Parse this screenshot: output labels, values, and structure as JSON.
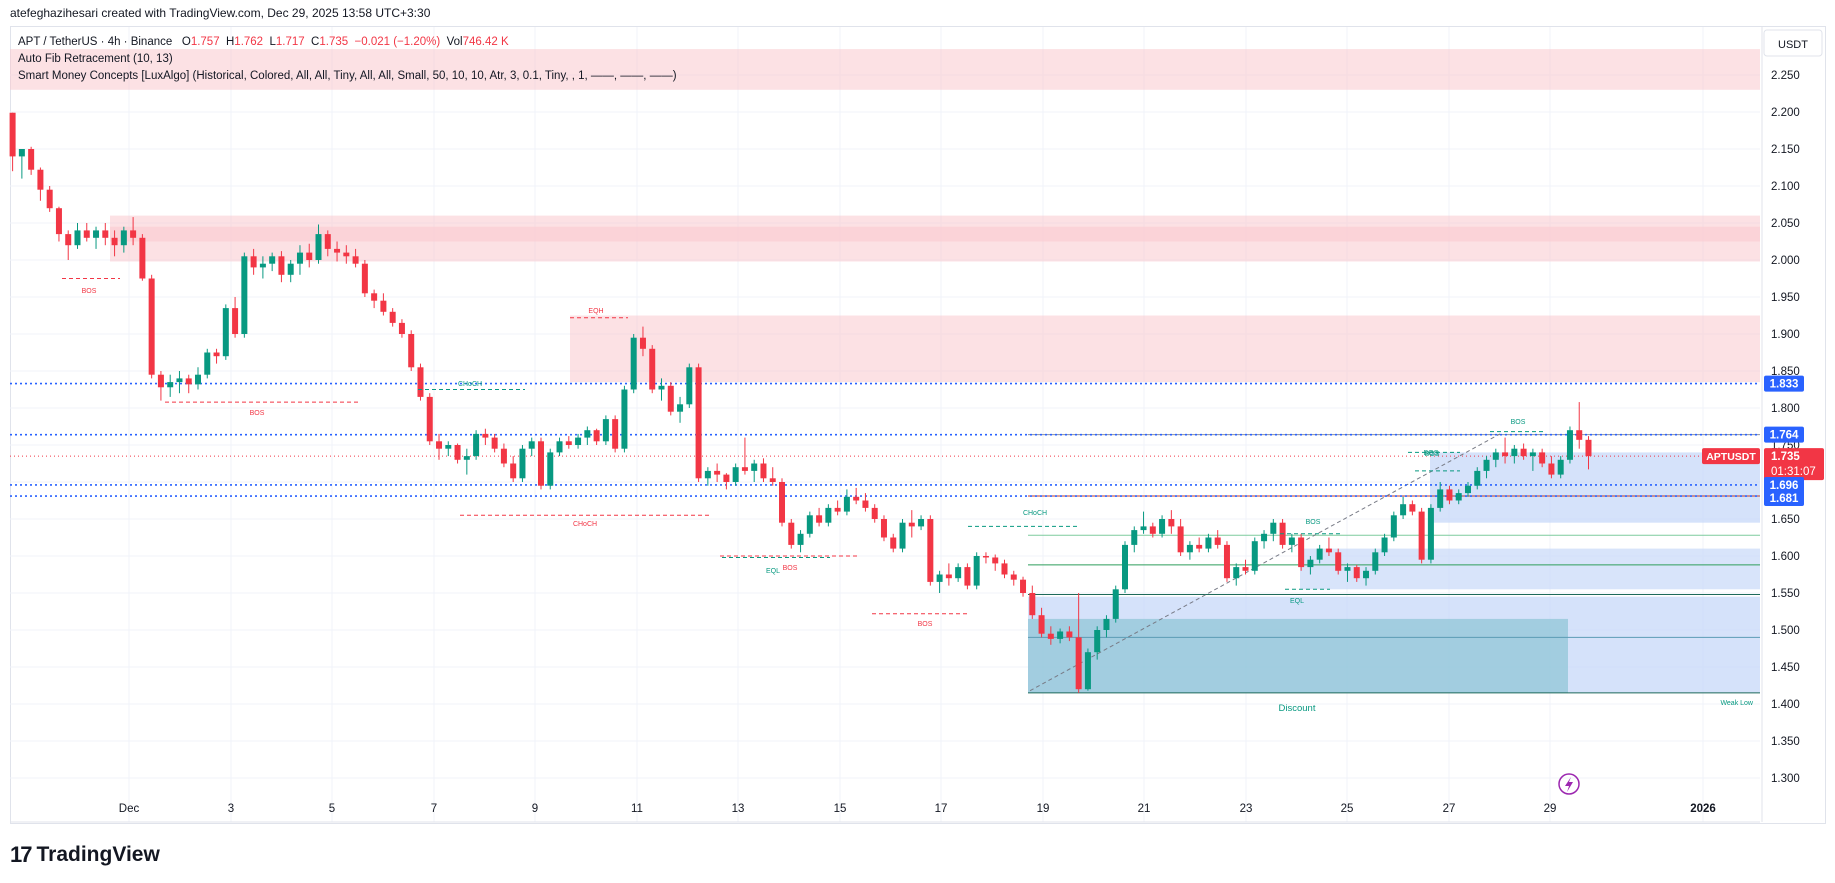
{
  "header": {
    "credit": "atefeghazihesari created with TradingView.com, Dec 29, 2025 13:58 UTC+3:30"
  },
  "legend": {
    "symbol": "APT / TetherUS · 4h · Binance",
    "open_label": "O",
    "open": "1.757",
    "high_label": "H",
    "high": "1.762",
    "low_label": "L",
    "low": "1.717",
    "close_label": "C",
    "close": "1.735",
    "change": "−0.021 (−1.20%)",
    "vol_label": "Vol",
    "vol": "746.42 K",
    "indicator1": "Auto Fib Retracement (10, 13)",
    "indicator2": "Smart Money Concepts [LuxAlgo] (Historical, Colored, All, All, Tiny, All, All, Small, 50, 10, 10, Atr, 3, 0.1, Tiny, , 1, ——, ——, ——)"
  },
  "axis": {
    "currency": "USDT",
    "y_ticks": [
      "2.250",
      "2.200",
      "2.150",
      "2.100",
      "2.050",
      "2.000",
      "1.950",
      "1.900",
      "1.850",
      "1.800",
      "1.750",
      "1.700",
      "1.650",
      "1.600",
      "1.550",
      "1.500",
      "1.450",
      "1.400",
      "1.350",
      "1.300"
    ],
    "x_ticks": [
      "Dec",
      "3",
      "5",
      "7",
      "9",
      "11",
      "13",
      "15",
      "17",
      "19",
      "21",
      "23",
      "25",
      "27",
      "29",
      "2026"
    ]
  },
  "price_tags": {
    "level_1833": "1.833",
    "level_1764": "1.764",
    "symbol_tag": "APTUSDT",
    "last_price": "1.735",
    "countdown": "01:31:07",
    "level_1696": "1.696",
    "level_1681": "1.681"
  },
  "annotations": {
    "bos": "BOS",
    "choch": "CHoCH",
    "eqh": "EQH",
    "eql": "EQL",
    "discount": "Discount",
    "weak_low": "Weak Low"
  },
  "footer": {
    "brand": "TradingView",
    "logo_glyph": "17"
  },
  "colors": {
    "up": "#089981",
    "down": "#f23645",
    "supply_zone": "#f9c9cd",
    "demand_zone": "#c7d8f8",
    "discount_zone": "#8cc4d4",
    "level_line": "#2962ff",
    "bos_text": "#f23645",
    "choch_text": "#089981"
  },
  "chart_data": {
    "type": "candlestick",
    "ylim": [
      1.28,
      2.285
    ],
    "y_label": "USDT",
    "candles_ohlc": [
      [
        2.199,
        2.199,
        2.12,
        2.14
      ],
      [
        2.14,
        2.15,
        2.11,
        2.15
      ],
      [
        2.15,
        2.153,
        2.115,
        2.122
      ],
      [
        2.122,
        2.125,
        2.08,
        2.095
      ],
      [
        2.095,
        2.1,
        2.065,
        2.07
      ],
      [
        2.07,
        2.072,
        2.025,
        2.035
      ],
      [
        2.035,
        2.04,
        2.0,
        2.02
      ],
      [
        2.02,
        2.05,
        2.015,
        2.04
      ],
      [
        2.04,
        2.05,
        2.025,
        2.03
      ],
      [
        2.03,
        2.045,
        2.015,
        2.04
      ],
      [
        2.04,
        2.05,
        2.02,
        2.03
      ],
      [
        2.03,
        2.04,
        2.005,
        2.02
      ],
      [
        2.02,
        2.045,
        2.01,
        2.04
      ],
      [
        2.04,
        2.058,
        2.02,
        2.03
      ],
      [
        2.03,
        2.035,
        1.972,
        1.975
      ],
      [
        1.975,
        1.98,
        1.84,
        1.845
      ],
      [
        1.845,
        1.85,
        1.81,
        1.828
      ],
      [
        1.828,
        1.845,
        1.815,
        1.835
      ],
      [
        1.835,
        1.85,
        1.82,
        1.84
      ],
      [
        1.84,
        1.845,
        1.82,
        1.832
      ],
      [
        1.832,
        1.855,
        1.825,
        1.845
      ],
      [
        1.845,
        1.88,
        1.84,
        1.875
      ],
      [
        1.875,
        1.88,
        1.86,
        1.87
      ],
      [
        1.87,
        1.94,
        1.865,
        1.935
      ],
      [
        1.935,
        1.95,
        1.895,
        1.9
      ],
      [
        1.9,
        2.01,
        1.895,
        2.005
      ],
      [
        2.005,
        2.015,
        1.98,
        1.99
      ],
      [
        1.99,
        2.005,
        1.975,
        1.995
      ],
      [
        1.995,
        2.01,
        1.985,
        2.005
      ],
      [
        2.005,
        2.012,
        1.97,
        1.98
      ],
      [
        1.98,
        2.0,
        1.97,
        1.995
      ],
      [
        1.995,
        2.02,
        1.98,
        2.01
      ],
      [
        2.01,
        2.022,
        1.99,
        2.0
      ],
      [
        2.0,
        2.048,
        1.995,
        2.035
      ],
      [
        2.035,
        2.04,
        2.005,
        2.015
      ],
      [
        2.015,
        2.025,
        1.998,
        2.01
      ],
      [
        2.01,
        2.02,
        1.995,
        2.005
      ],
      [
        2.005,
        2.015,
        1.99,
        1.995
      ],
      [
        1.995,
        2.0,
        1.95,
        1.955
      ],
      [
        1.955,
        1.96,
        1.935,
        1.945
      ],
      [
        1.945,
        1.955,
        1.925,
        1.93
      ],
      [
        1.93,
        1.935,
        1.91,
        1.915
      ],
      [
        1.915,
        1.92,
        1.895,
        1.9
      ],
      [
        1.9,
        1.905,
        1.85,
        1.855
      ],
      [
        1.855,
        1.86,
        1.81,
        1.815
      ],
      [
        1.815,
        1.82,
        1.75,
        1.755
      ],
      [
        1.755,
        1.765,
        1.73,
        1.745
      ],
      [
        1.745,
        1.755,
        1.735,
        1.75
      ],
      [
        1.75,
        1.752,
        1.725,
        1.73
      ],
      [
        1.73,
        1.745,
        1.71,
        1.735
      ],
      [
        1.735,
        1.77,
        1.73,
        1.765
      ],
      [
        1.765,
        1.772,
        1.75,
        1.76
      ],
      [
        1.76,
        1.765,
        1.74,
        1.745
      ],
      [
        1.745,
        1.752,
        1.72,
        1.725
      ],
      [
        1.725,
        1.735,
        1.7,
        1.705
      ],
      [
        1.705,
        1.75,
        1.7,
        1.745
      ],
      [
        1.745,
        1.76,
        1.735,
        1.755
      ],
      [
        1.755,
        1.76,
        1.69,
        1.695
      ],
      [
        1.695,
        1.745,
        1.69,
        1.74
      ],
      [
        1.74,
        1.76,
        1.735,
        1.755
      ],
      [
        1.755,
        1.762,
        1.745,
        1.75
      ],
      [
        1.75,
        1.765,
        1.745,
        1.76
      ],
      [
        1.76,
        1.775,
        1.75,
        1.77
      ],
      [
        1.77,
        1.772,
        1.75,
        1.755
      ],
      [
        1.755,
        1.79,
        1.75,
        1.785
      ],
      [
        1.785,
        1.79,
        1.74,
        1.745
      ],
      [
        1.745,
        1.83,
        1.74,
        1.825
      ],
      [
        1.825,
        1.9,
        1.82,
        1.895
      ],
      [
        1.895,
        1.91,
        1.87,
        1.88
      ],
      [
        1.88,
        1.885,
        1.82,
        1.825
      ],
      [
        1.825,
        1.84,
        1.81,
        1.83
      ],
      [
        1.83,
        1.835,
        1.79,
        1.795
      ],
      [
        1.795,
        1.815,
        1.78,
        1.805
      ],
      [
        1.805,
        1.86,
        1.8,
        1.855
      ],
      [
        1.855,
        1.86,
        1.7,
        1.705
      ],
      [
        1.705,
        1.72,
        1.695,
        1.715
      ],
      [
        1.715,
        1.725,
        1.7,
        1.71
      ],
      [
        1.71,
        1.712,
        1.69,
        1.7
      ],
      [
        1.7,
        1.725,
        1.695,
        1.72
      ],
      [
        1.72,
        1.76,
        1.71,
        1.715
      ],
      [
        1.715,
        1.73,
        1.7,
        1.725
      ],
      [
        1.725,
        1.732,
        1.7,
        1.705
      ],
      [
        1.705,
        1.72,
        1.695,
        1.7
      ],
      [
        1.7,
        1.705,
        1.64,
        1.645
      ],
      [
        1.645,
        1.65,
        1.61,
        1.615
      ],
      [
        1.615,
        1.635,
        1.605,
        1.63
      ],
      [
        1.63,
        1.66,
        1.625,
        1.655
      ],
      [
        1.655,
        1.665,
        1.64,
        1.645
      ],
      [
        1.645,
        1.67,
        1.64,
        1.665
      ],
      [
        1.665,
        1.675,
        1.655,
        1.66
      ],
      [
        1.66,
        1.69,
        1.655,
        1.68
      ],
      [
        1.68,
        1.692,
        1.67,
        1.675
      ],
      [
        1.675,
        1.685,
        1.66,
        1.665
      ],
      [
        1.665,
        1.67,
        1.645,
        1.65
      ],
      [
        1.65,
        1.655,
        1.62,
        1.625
      ],
      [
        1.625,
        1.63,
        1.605,
        1.61
      ],
      [
        1.61,
        1.65,
        1.605,
        1.645
      ],
      [
        1.645,
        1.662,
        1.625,
        1.64
      ],
      [
        1.64,
        1.655,
        1.635,
        1.65
      ],
      [
        1.65,
        1.655,
        1.56,
        1.565
      ],
      [
        1.565,
        1.58,
        1.55,
        1.575
      ],
      [
        1.575,
        1.59,
        1.56,
        1.57
      ],
      [
        1.57,
        1.59,
        1.565,
        1.585
      ],
      [
        1.585,
        1.59,
        1.555,
        1.56
      ],
      [
        1.56,
        1.605,
        1.555,
        1.6
      ],
      [
        1.6,
        1.605,
        1.59,
        1.598
      ],
      [
        1.598,
        1.602,
        1.58,
        1.59
      ],
      [
        1.59,
        1.595,
        1.57,
        1.575
      ],
      [
        1.575,
        1.58,
        1.56,
        1.568
      ],
      [
        1.568,
        1.572,
        1.545,
        1.55
      ],
      [
        1.55,
        1.56,
        1.515,
        1.52
      ],
      [
        1.52,
        1.53,
        1.49,
        1.495
      ],
      [
        1.495,
        1.505,
        1.48,
        1.488
      ],
      [
        1.488,
        1.502,
        1.482,
        1.498
      ],
      [
        1.498,
        1.505,
        1.485,
        1.49
      ],
      [
        1.49,
        1.55,
        1.415,
        1.42
      ],
      [
        1.42,
        1.475,
        1.418,
        1.47
      ],
      [
        1.47,
        1.505,
        1.46,
        1.5
      ],
      [
        1.5,
        1.52,
        1.49,
        1.515
      ],
      [
        1.515,
        1.56,
        1.51,
        1.555
      ],
      [
        1.555,
        1.62,
        1.55,
        1.615
      ],
      [
        1.615,
        1.64,
        1.605,
        1.635
      ],
      [
        1.635,
        1.66,
        1.63,
        1.64
      ],
      [
        1.64,
        1.645,
        1.625,
        1.63
      ],
      [
        1.63,
        1.655,
        1.625,
        1.65
      ],
      [
        1.65,
        1.662,
        1.63,
        1.64
      ],
      [
        1.64,
        1.65,
        1.6,
        1.605
      ],
      [
        1.605,
        1.62,
        1.595,
        1.615
      ],
      [
        1.615,
        1.625,
        1.605,
        1.61
      ],
      [
        1.61,
        1.63,
        1.605,
        1.625
      ],
      [
        1.625,
        1.635,
        1.61,
        1.615
      ],
      [
        1.615,
        1.62,
        1.565,
        1.57
      ],
      [
        1.57,
        1.59,
        1.56,
        1.585
      ],
      [
        1.585,
        1.595,
        1.575,
        1.58
      ],
      [
        1.58,
        1.625,
        1.575,
        1.62
      ],
      [
        1.62,
        1.635,
        1.61,
        1.63
      ],
      [
        1.63,
        1.65,
        1.62,
        1.645
      ],
      [
        1.645,
        1.65,
        1.61,
        1.615
      ],
      [
        1.615,
        1.63,
        1.605,
        1.625
      ],
      [
        1.625,
        1.63,
        1.58,
        1.585
      ],
      [
        1.585,
        1.6,
        1.575,
        1.595
      ],
      [
        1.595,
        1.615,
        1.59,
        1.61
      ],
      [
        1.61,
        1.625,
        1.6,
        1.605
      ],
      [
        1.605,
        1.61,
        1.575,
        1.58
      ],
      [
        1.58,
        1.59,
        1.565,
        1.585
      ],
      [
        1.585,
        1.588,
        1.565,
        1.57
      ],
      [
        1.57,
        1.585,
        1.56,
        1.58
      ],
      [
        1.58,
        1.61,
        1.575,
        1.605
      ],
      [
        1.605,
        1.63,
        1.6,
        1.625
      ],
      [
        1.625,
        1.66,
        1.62,
        1.655
      ],
      [
        1.655,
        1.68,
        1.65,
        1.67
      ],
      [
        1.67,
        1.675,
        1.655,
        1.66
      ],
      [
        1.66,
        1.665,
        1.59,
        1.595
      ],
      [
        1.595,
        1.67,
        1.59,
        1.665
      ],
      [
        1.665,
        1.7,
        1.66,
        1.69
      ],
      [
        1.69,
        1.695,
        1.67,
        1.675
      ],
      [
        1.675,
        1.69,
        1.67,
        1.685
      ],
      [
        1.685,
        1.7,
        1.68,
        1.695
      ],
      [
        1.695,
        1.72,
        1.69,
        1.715
      ],
      [
        1.715,
        1.735,
        1.705,
        1.73
      ],
      [
        1.73,
        1.745,
        1.72,
        1.74
      ],
      [
        1.74,
        1.76,
        1.725,
        1.735
      ],
      [
        1.735,
        1.75,
        1.725,
        1.745
      ],
      [
        1.745,
        1.752,
        1.73,
        1.735
      ],
      [
        1.735,
        1.745,
        1.715,
        1.74
      ],
      [
        1.74,
        1.745,
        1.72,
        1.725
      ],
      [
        1.725,
        1.735,
        1.705,
        1.71
      ],
      [
        1.71,
        1.735,
        1.705,
        1.73
      ],
      [
        1.73,
        1.775,
        1.725,
        1.77
      ],
      [
        1.77,
        1.808,
        1.745,
        1.757
      ],
      [
        1.757,
        1.762,
        1.717,
        1.735
      ]
    ],
    "horizontal_levels": [
      1.833,
      1.764,
      1.696,
      1.681
    ],
    "supply_zones": [
      [
        1.998,
        2.06
      ],
      [
        2.025,
        2.045
      ],
      [
        1.835,
        1.925
      ],
      [
        2.23,
        2.285
      ]
    ],
    "demand_zones": [
      [
        1.415,
        1.545
      ],
      [
        1.415,
        1.515
      ],
      [
        1.555,
        1.61
      ],
      [
        1.645,
        1.74
      ]
    ],
    "x_tick_labels": [
      "Dec",
      "3",
      "5",
      "7",
      "9",
      "11",
      "13",
      "15",
      "17",
      "19",
      "21",
      "23",
      "25",
      "27",
      "29",
      "2026"
    ],
    "y_tick_labels": [
      "2.250",
      "2.200",
      "2.150",
      "2.100",
      "2.050",
      "2.000",
      "1.950",
      "1.900",
      "1.850",
      "1.800",
      "1.750",
      "1.700",
      "1.650",
      "1.600",
      "1.550",
      "1.500",
      "1.450",
      "1.400",
      "1.350",
      "1.300"
    ],
    "grid": true,
    "last_price": 1.735
  }
}
